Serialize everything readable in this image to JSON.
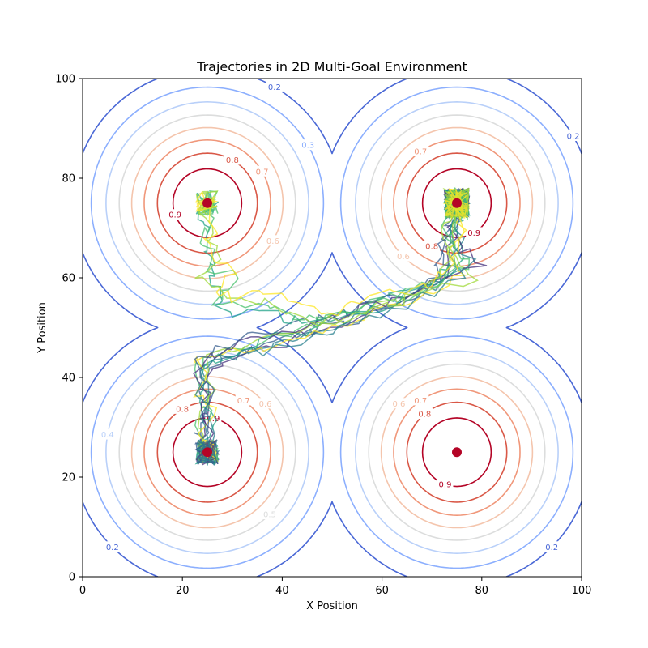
{
  "chart_data": {
    "type": "contour-with-trajectories",
    "title": "Trajectories in 2D Multi-Goal Environment",
    "xlabel": "X Position",
    "ylabel": "Y Position",
    "xlim": [
      0,
      100
    ],
    "ylim": [
      0,
      100
    ],
    "x_ticks": [
      "0",
      "20",
      "40",
      "60",
      "80",
      "100"
    ],
    "y_ticks": [
      "0",
      "20",
      "40",
      "60",
      "80",
      "100"
    ],
    "grid": false,
    "goals": [
      {
        "x": 25,
        "y": 75
      },
      {
        "x": 75,
        "y": 75
      },
      {
        "x": 25,
        "y": 25
      },
      {
        "x": 75,
        "y": 25
      }
    ],
    "goal_color": "#b40426",
    "contour_levels": [
      0.2,
      0.3,
      0.4,
      0.5,
      0.6,
      0.7,
      0.8,
      0.9
    ],
    "contour_level_labels": [
      "0.2",
      "0.3",
      "0.4",
      "0.5",
      "0.6",
      "0.7",
      "0.8",
      "0.9"
    ],
    "contour_colors": [
      "#4a68d6",
      "#8caffe",
      "#b9d0f9",
      "#dcdddd",
      "#f4c5ad",
      "#f0977a",
      "#d95847",
      "#b40426"
    ],
    "contour_sigma": 15,
    "trajectory_colormap": [
      "#46327e",
      "#365c8d",
      "#277f8e",
      "#1fa187",
      "#4ac16d",
      "#a0da39",
      "#fde725"
    ],
    "trajectories": [
      {
        "path": [
          [
            25,
            25
          ],
          [
            24,
            27
          ],
          [
            24,
            31
          ],
          [
            25,
            35
          ],
          [
            24,
            39
          ],
          [
            26,
            42
          ],
          [
            30,
            44
          ],
          [
            35,
            46
          ],
          [
            40,
            47
          ],
          [
            45,
            49
          ],
          [
            50,
            50
          ],
          [
            55,
            52
          ],
          [
            60,
            54
          ],
          [
            65,
            56
          ],
          [
            70,
            58
          ],
          [
            73,
            62
          ],
          [
            74,
            67
          ],
          [
            75,
            71
          ],
          [
            75,
            75
          ]
        ]
      },
      {
        "path": [
          [
            25,
            25
          ],
          [
            23,
            28
          ],
          [
            25,
            32
          ],
          [
            23,
            36
          ],
          [
            25,
            40
          ],
          [
            28,
            43
          ],
          [
            33,
            45
          ],
          [
            38,
            47
          ],
          [
            43,
            48
          ],
          [
            48,
            50
          ],
          [
            53,
            51
          ],
          [
            58,
            53
          ],
          [
            63,
            55
          ],
          [
            68,
            57
          ],
          [
            71,
            60
          ],
          [
            72,
            65
          ],
          [
            73,
            70
          ],
          [
            74,
            74
          ],
          [
            75,
            75
          ]
        ]
      },
      {
        "path": [
          [
            25,
            25
          ],
          [
            26,
            29
          ],
          [
            24,
            33
          ],
          [
            26,
            37
          ],
          [
            23,
            41
          ],
          [
            27,
            44
          ],
          [
            32,
            45
          ],
          [
            37,
            46
          ],
          [
            42,
            48
          ],
          [
            47,
            49
          ],
          [
            52,
            51
          ],
          [
            57,
            53
          ],
          [
            62,
            55
          ],
          [
            67,
            57
          ],
          [
            72,
            59
          ],
          [
            74,
            63
          ],
          [
            76,
            68
          ],
          [
            74,
            72
          ],
          [
            75,
            75
          ]
        ]
      },
      {
        "path": [
          [
            25,
            25
          ],
          [
            24,
            28
          ],
          [
            26,
            31
          ],
          [
            24,
            35
          ],
          [
            25,
            38
          ],
          [
            24,
            42
          ],
          [
            29,
            44
          ],
          [
            34,
            46
          ],
          [
            39,
            48
          ],
          [
            44,
            49
          ],
          [
            49,
            51
          ],
          [
            54,
            53
          ],
          [
            59,
            55
          ],
          [
            64,
            57
          ],
          [
            69,
            59
          ],
          [
            75,
            61
          ],
          [
            77,
            65
          ],
          [
            75,
            70
          ],
          [
            76,
            74
          ],
          [
            75,
            75
          ]
        ]
      },
      {
        "path": [
          [
            25,
            25
          ],
          [
            23,
            30
          ],
          [
            25,
            34
          ],
          [
            24,
            38
          ],
          [
            22,
            42
          ],
          [
            26,
            45
          ],
          [
            31,
            46
          ],
          [
            36,
            47
          ],
          [
            41,
            49
          ],
          [
            46,
            51
          ],
          [
            51,
            52
          ],
          [
            56,
            54
          ],
          [
            61,
            56
          ],
          [
            66,
            58
          ],
          [
            71,
            60
          ],
          [
            78,
            62
          ],
          [
            74,
            66
          ],
          [
            73,
            71
          ],
          [
            75,
            75
          ]
        ]
      },
      {
        "path": [
          [
            25,
            25
          ],
          [
            25,
            27
          ],
          [
            23,
            31
          ],
          [
            25,
            35
          ],
          [
            26,
            39
          ],
          [
            24,
            43
          ],
          [
            28,
            45
          ],
          [
            34,
            47
          ],
          [
            40,
            48
          ],
          [
            46,
            50
          ],
          [
            52,
            52
          ],
          [
            58,
            54
          ],
          [
            64,
            56
          ],
          [
            70,
            58
          ],
          [
            79,
            60
          ],
          [
            75,
            63
          ],
          [
            72,
            67
          ],
          [
            74,
            72
          ],
          [
            75,
            75
          ]
        ]
      },
      {
        "path": [
          [
            25,
            25
          ],
          [
            24,
            29
          ],
          [
            26,
            33
          ],
          [
            23,
            37
          ],
          [
            24,
            41
          ],
          [
            23,
            44
          ],
          [
            29,
            45
          ],
          [
            35,
            46
          ],
          [
            41,
            47
          ],
          [
            47,
            49
          ],
          [
            53,
            51
          ],
          [
            59,
            53
          ],
          [
            65,
            55
          ],
          [
            71,
            57
          ],
          [
            77,
            61
          ],
          [
            73,
            64
          ],
          [
            76,
            69
          ],
          [
            75,
            73
          ],
          [
            75,
            75
          ]
        ]
      },
      {
        "path": [
          [
            25,
            25
          ],
          [
            26,
            28
          ],
          [
            24,
            32
          ],
          [
            25,
            36
          ],
          [
            23,
            40
          ],
          [
            25,
            44
          ],
          [
            30,
            46
          ],
          [
            36,
            48
          ],
          [
            42,
            49
          ],
          [
            48,
            51
          ],
          [
            54,
            53
          ],
          [
            60,
            55
          ],
          [
            66,
            57
          ],
          [
            72,
            60
          ],
          [
            80,
            63
          ],
          [
            76,
            66
          ],
          [
            74,
            70
          ],
          [
            75,
            75
          ]
        ]
      },
      {
        "path": [
          [
            25,
            25
          ],
          [
            23,
            27
          ],
          [
            25,
            30
          ],
          [
            24,
            34
          ],
          [
            26,
            38
          ],
          [
            22,
            43
          ],
          [
            27,
            46
          ],
          [
            32,
            48
          ],
          [
            38,
            49
          ],
          [
            44,
            51
          ],
          [
            50,
            52
          ],
          [
            56,
            54
          ],
          [
            62,
            56
          ],
          [
            68,
            59
          ],
          [
            74,
            62
          ],
          [
            72,
            66
          ],
          [
            75,
            71
          ],
          [
            75,
            75
          ]
        ]
      },
      {
        "path": [
          [
            25,
            25
          ],
          [
            24,
            30
          ],
          [
            25,
            34
          ],
          [
            23,
            38
          ],
          [
            25,
            42
          ],
          [
            28,
            44
          ],
          [
            34,
            45
          ],
          [
            40,
            46
          ],
          [
            46,
            48
          ],
          [
            52,
            50
          ],
          [
            58,
            52
          ],
          [
            64,
            54
          ],
          [
            70,
            57
          ],
          [
            76,
            60
          ],
          [
            78,
            64
          ],
          [
            74,
            68
          ],
          [
            75,
            75
          ]
        ]
      },
      {
        "path": [
          [
            25,
            75
          ],
          [
            24,
            72
          ],
          [
            26,
            69
          ],
          [
            24,
            66
          ],
          [
            27,
            63
          ],
          [
            25,
            60
          ],
          [
            28,
            57
          ],
          [
            26,
            54
          ],
          [
            30,
            52
          ],
          [
            35,
            53
          ],
          [
            40,
            52
          ],
          [
            45,
            51
          ],
          [
            50,
            52
          ],
          [
            55,
            53
          ],
          [
            60,
            54
          ],
          [
            65,
            56
          ],
          [
            70,
            58
          ],
          [
            73,
            62
          ],
          [
            74,
            68
          ],
          [
            75,
            75
          ]
        ]
      },
      {
        "path": [
          [
            25,
            75
          ],
          [
            26,
            71
          ],
          [
            24,
            68
          ],
          [
            27,
            65
          ],
          [
            25,
            62
          ],
          [
            32,
            60
          ],
          [
            29,
            57
          ],
          [
            27,
            55
          ],
          [
            33,
            55
          ],
          [
            38,
            54
          ],
          [
            43,
            52
          ],
          [
            48,
            52
          ],
          [
            53,
            53
          ],
          [
            58,
            55
          ],
          [
            63,
            56
          ],
          [
            68,
            57
          ],
          [
            72,
            60
          ],
          [
            75,
            65
          ],
          [
            74,
            70
          ],
          [
            75,
            75
          ]
        ]
      },
      {
        "path": [
          [
            25,
            75
          ],
          [
            23,
            73
          ],
          [
            26,
            70
          ],
          [
            25,
            67
          ],
          [
            28,
            64
          ],
          [
            23,
            60
          ],
          [
            26,
            58
          ],
          [
            31,
            56
          ],
          [
            37,
            55
          ],
          [
            42,
            53
          ],
          [
            47,
            51
          ],
          [
            52,
            52
          ],
          [
            57,
            54
          ],
          [
            62,
            55
          ],
          [
            67,
            56
          ],
          [
            71,
            59
          ],
          [
            73,
            64
          ],
          [
            75,
            69
          ],
          [
            75,
            75
          ]
        ]
      },
      {
        "path": [
          [
            25,
            75
          ],
          [
            25,
            72
          ],
          [
            27,
            70
          ],
          [
            24,
            67
          ],
          [
            26,
            64
          ],
          [
            30,
            61
          ],
          [
            27,
            58
          ],
          [
            30,
            56
          ],
          [
            35,
            57
          ],
          [
            41,
            56
          ],
          [
            46,
            54
          ],
          [
            51,
            53
          ],
          [
            56,
            55
          ],
          [
            61,
            57
          ],
          [
            66,
            58
          ],
          [
            70,
            59
          ],
          [
            74,
            63
          ],
          [
            76,
            68
          ],
          [
            75,
            75
          ]
        ]
      }
    ]
  }
}
